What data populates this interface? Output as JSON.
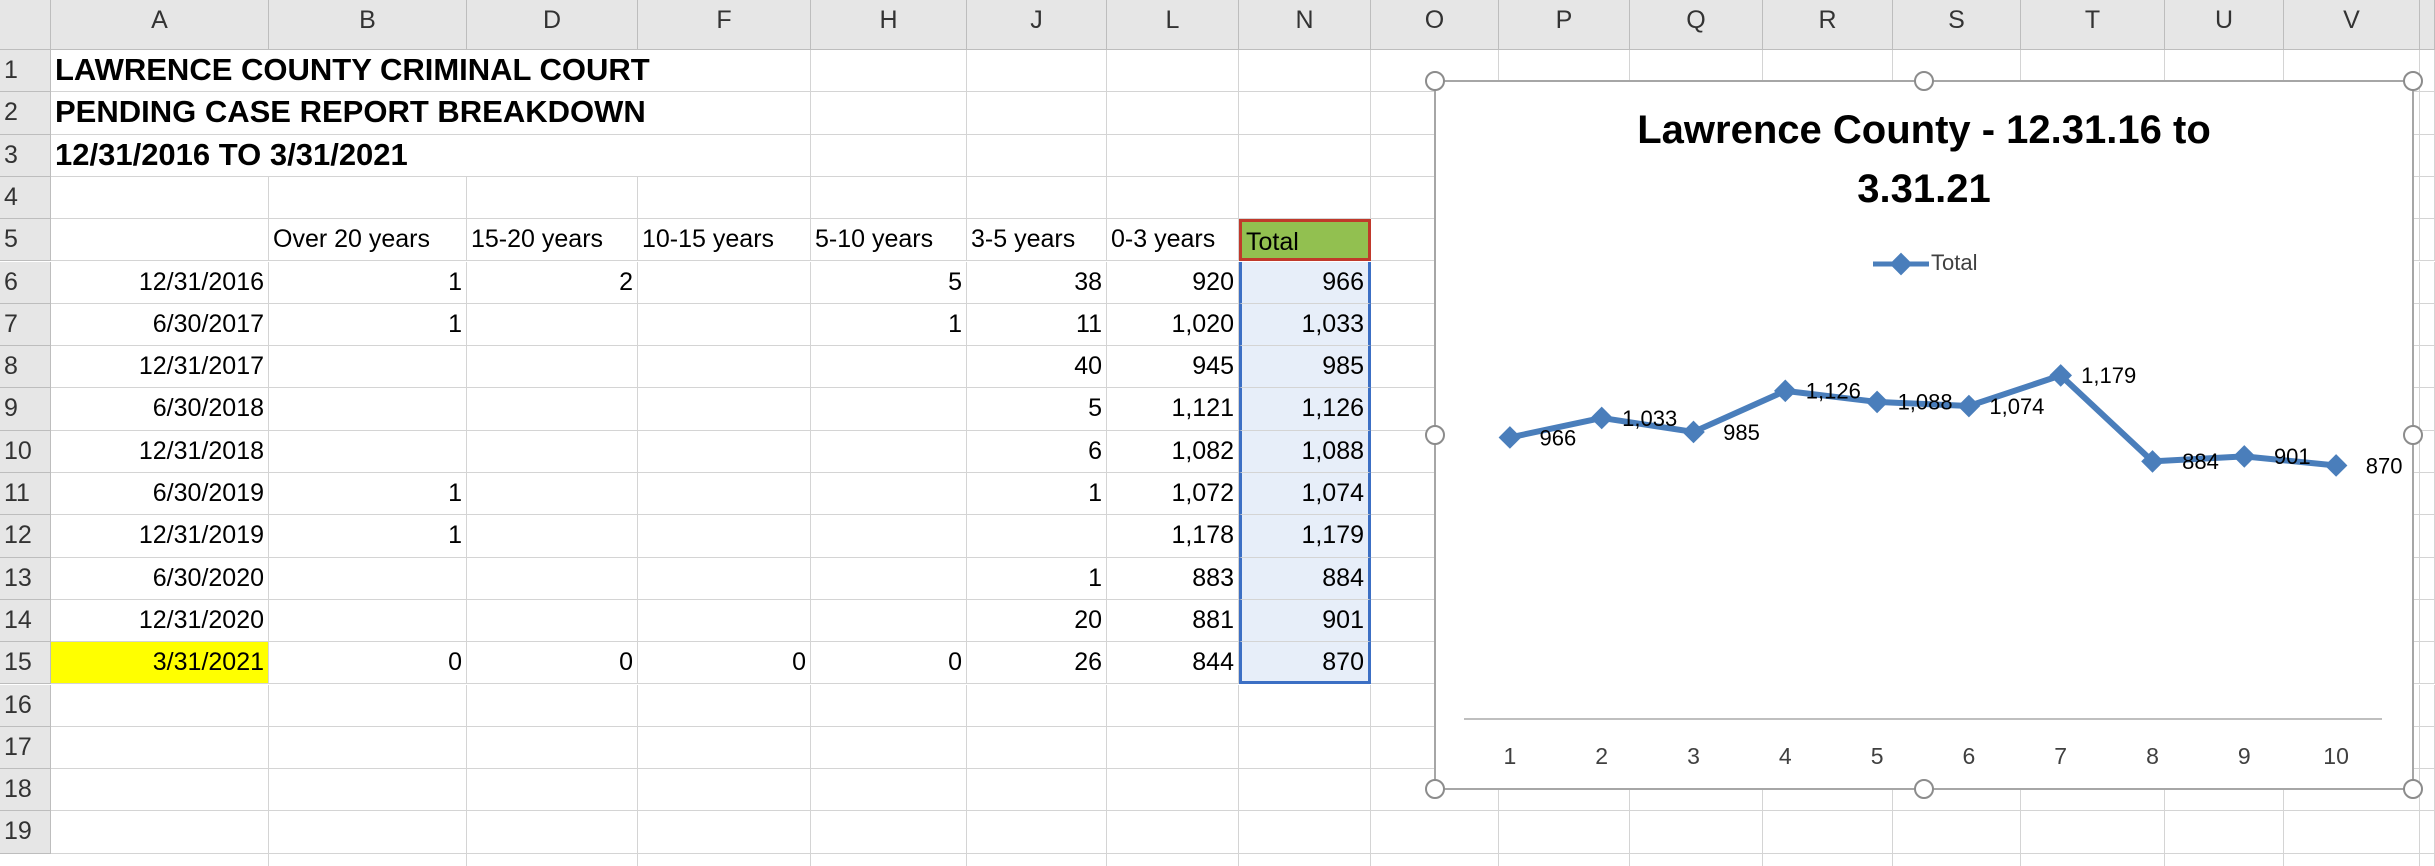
{
  "column_letters": [
    "A",
    "B",
    "D",
    "F",
    "H",
    "J",
    "L",
    "N",
    "O",
    "P",
    "Q",
    "R",
    "S",
    "T",
    "U",
    "V"
  ],
  "row_numbers": [
    1,
    2,
    3,
    4,
    5,
    6,
    7,
    8,
    9,
    10,
    11,
    12,
    13,
    14,
    15,
    16,
    17,
    18,
    19
  ],
  "title_lines": [
    "LAWRENCE COUNTY CRIMINAL COURT",
    "PENDING CASE REPORT BREAKDOWN",
    "12/31/2016 TO 3/31/2021"
  ],
  "table": {
    "header": [
      "Over 20 years",
      "15-20 years",
      "10-15 years",
      "5-10 years",
      "3-5 years",
      "0-3 years",
      "Total"
    ],
    "rows": [
      [
        "12/31/2016",
        "1",
        "2",
        null,
        "5",
        "38",
        "920",
        "966"
      ],
      [
        "6/30/2017",
        "1",
        null,
        null,
        "1",
        "11",
        "1,020",
        "1,033"
      ],
      [
        "12/31/2017",
        null,
        null,
        null,
        null,
        "40",
        "945",
        "985"
      ],
      [
        "6/30/2018",
        null,
        null,
        null,
        null,
        "5",
        "1,121",
        "1,126"
      ],
      [
        "12/31/2018",
        null,
        null,
        null,
        null,
        "6",
        "1,082",
        "1,088"
      ],
      [
        "6/30/2019",
        "1",
        null,
        null,
        null,
        "1",
        "1,072",
        "1,074"
      ],
      [
        "12/31/2019",
        "1",
        null,
        null,
        null,
        null,
        "1,178",
        "1,179"
      ],
      [
        "6/30/2020",
        null,
        null,
        null,
        null,
        "1",
        "883",
        "884"
      ],
      [
        "12/31/2020",
        null,
        null,
        null,
        null,
        "20",
        "881",
        "901"
      ],
      [
        "3/31/2021",
        "0",
        "0",
        "0",
        "0",
        "26",
        "844",
        "870"
      ]
    ]
  },
  "chart_data": {
    "type": "line",
    "title": "Lawrence County - 12.31.16 to 3.31.21",
    "categories": [
      1,
      2,
      3,
      4,
      5,
      6,
      7,
      8,
      9,
      10
    ],
    "series": [
      {
        "name": "Total",
        "color": "#4a7ebb",
        "values": [
          966,
          1033,
          985,
          1126,
          1088,
          1074,
          1179,
          884,
          901,
          870
        ],
        "value_labels": [
          "966",
          "1,033",
          "985",
          "1,126",
          "1,088",
          "1,074",
          "1,179",
          "884",
          "901",
          "870"
        ]
      }
    ],
    "ylim": [
      0,
      1400
    ],
    "legend": "top"
  }
}
